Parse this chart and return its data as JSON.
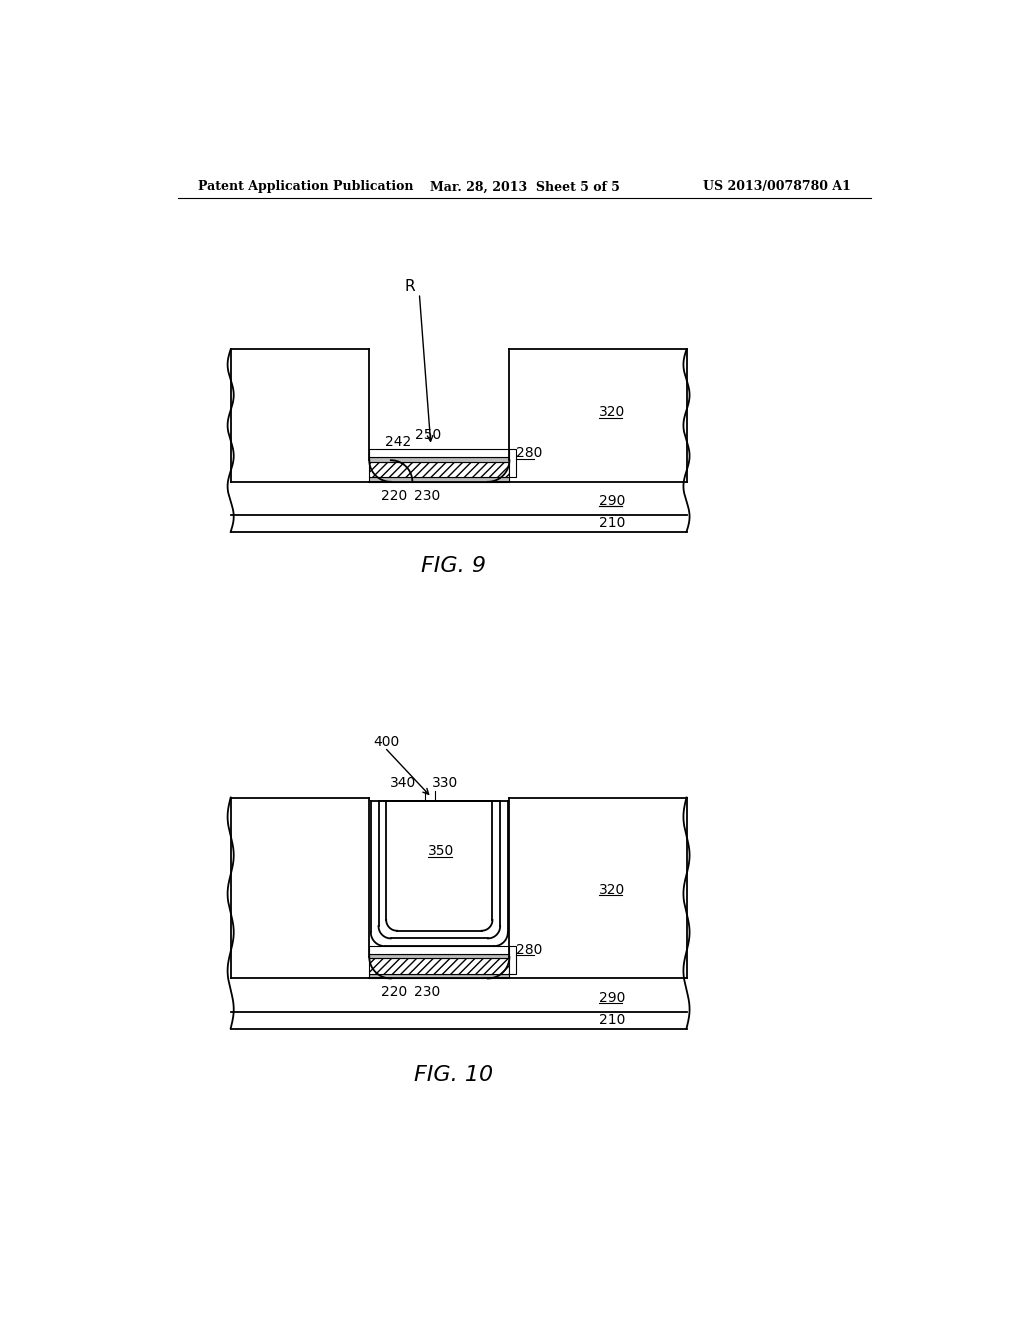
{
  "bg_color": "#ffffff",
  "line_color": "#000000",
  "header_left": "Patent Application Publication",
  "header_center": "Mar. 28, 2013  Sheet 5 of 5",
  "header_right": "US 2013/0078780 A1",
  "fig9_label": "FIG. 9",
  "fig10_label": "FIG. 10"
}
